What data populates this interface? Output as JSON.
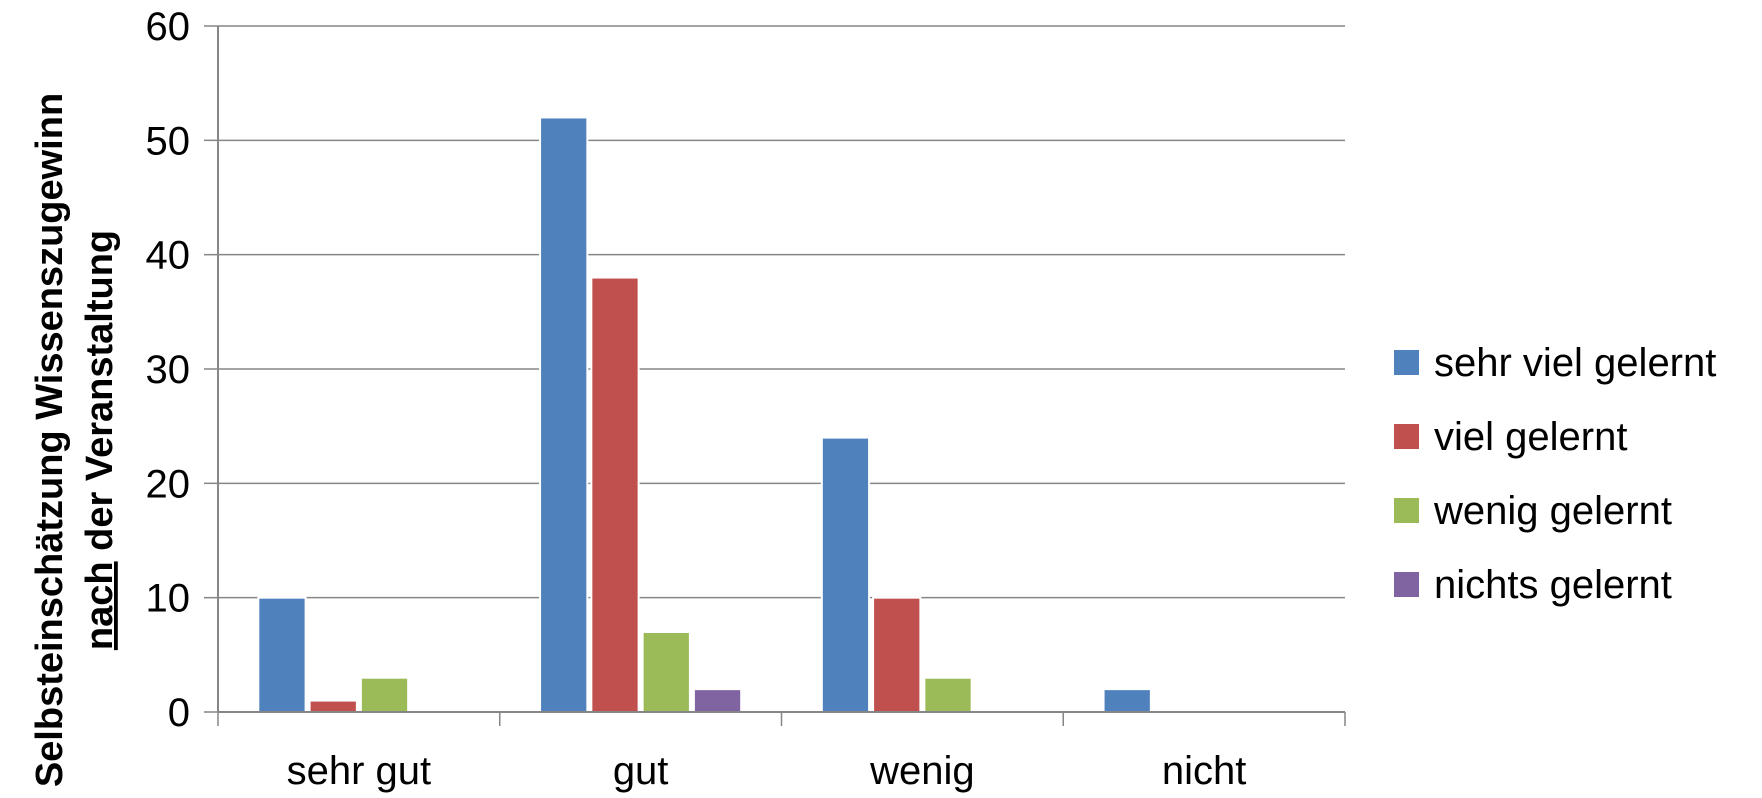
{
  "chart_data": {
    "type": "bar",
    "title": "",
    "xlabel": "",
    "ylabel_line1": "Selbsteinschätzung Wissenszugewinn",
    "ylabel_line2_underlined": "nach",
    "ylabel_line2_rest": " der Veranstaltung",
    "categories": [
      "sehr gut",
      "gut",
      "wenig",
      "nicht"
    ],
    "ylim": [
      0,
      60
    ],
    "yticks": [
      0,
      10,
      20,
      30,
      40,
      50,
      60
    ],
    "grid": true,
    "legend_position": "right",
    "series": [
      {
        "name": "sehr viel gelernt",
        "color": "#4F81BD",
        "values": [
          10,
          52,
          24,
          2
        ]
      },
      {
        "name": "viel gelernt",
        "color": "#C0504D",
        "values": [
          1,
          38,
          10,
          0
        ]
      },
      {
        "name": "wenig gelernt",
        "color": "#9BBB59",
        "values": [
          3,
          7,
          3,
          0
        ]
      },
      {
        "name": "nichts gelernt",
        "color": "#8064A2",
        "values": [
          0,
          2,
          0,
          0
        ]
      }
    ]
  }
}
